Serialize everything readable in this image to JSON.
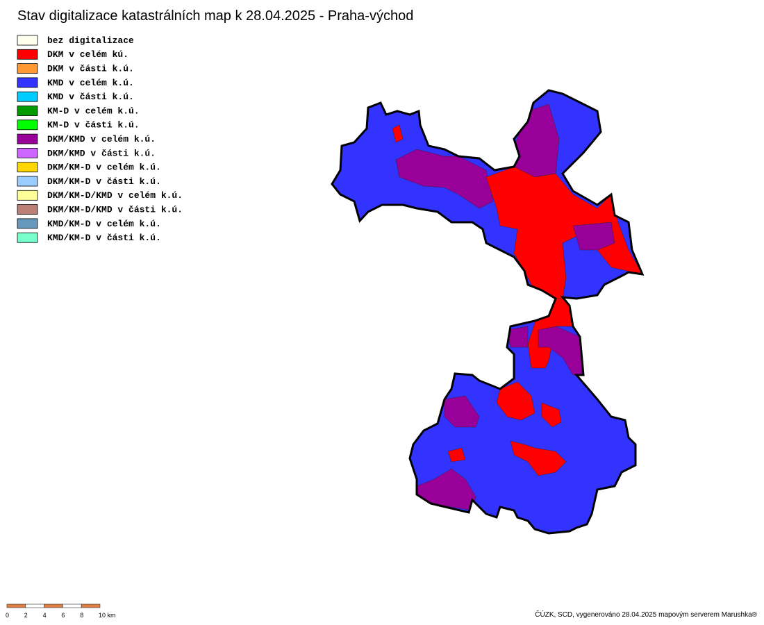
{
  "title": "Stav digitalizace katastrálních map k 28.04.2025 - Praha-východ",
  "legend": [
    {
      "label": "bez digitalizace",
      "color": "#ffffee"
    },
    {
      "label": "DKM v celém kú.",
      "color": "#ff0000"
    },
    {
      "label": "DKM v části k.ú.",
      "color": "#ff9933"
    },
    {
      "label": "KMD v celém k.ú.",
      "color": "#3333ff"
    },
    {
      "label": "KMD v části k.ú.",
      "color": "#00ccff"
    },
    {
      "label": "KM-D v celém k.ú.",
      "color": "#009900"
    },
    {
      "label": "KM-D v části k.ú.",
      "color": "#00ff00"
    },
    {
      "label": "DKM/KMD v celém k.ú.",
      "color": "#990099"
    },
    {
      "label": "DKM/KMD v části k.ú.",
      "color": "#cc66ff"
    },
    {
      "label": "DKM/KM-D v celém k.ú.",
      "color": "#ffd700"
    },
    {
      "label": "DKM/KM-D v části k.ú.",
      "color": "#99ccff"
    },
    {
      "label": "DKM/KM-D/KMD v celém k.ú.",
      "color": "#ffff99"
    },
    {
      "label": "DKM/KM-D/KMD v části k.ú.",
      "color": "#bb7f77"
    },
    {
      "label": "KMD/KM-D v celém k.ú.",
      "color": "#6699bb"
    },
    {
      "label": "KMD/KM-D v části k.ú.",
      "color": "#77ffcc"
    }
  ],
  "scale": {
    "labels": [
      "0",
      "2",
      "4",
      "6",
      "8",
      "10 km"
    ]
  },
  "attribution": "ČÚZK, SCD, vygenerováno 28.04.2025 mapovým serverem Marushka®"
}
